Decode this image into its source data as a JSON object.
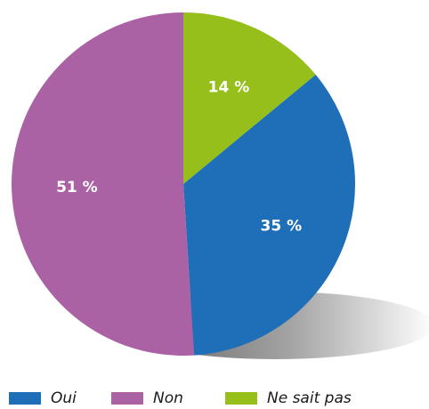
{
  "chart_data": {
    "type": "pie",
    "title": "",
    "categories": [
      "Oui",
      "Non",
      "Ne sait pas"
    ],
    "values": [
      35,
      51,
      14
    ],
    "value_labels": [
      "35 %",
      "51 %",
      "14 %"
    ],
    "colors": [
      "#1f6fb8",
      "#ab62a5",
      "#96bf1c"
    ],
    "start": "12 o'clock",
    "direction": "clockwise",
    "slice_order": [
      "Ne sait pas",
      "Oui",
      "Non"
    ],
    "legend_position": "bottom",
    "legend": [
      "Oui",
      "Non",
      "Ne sait pas"
    ]
  }
}
